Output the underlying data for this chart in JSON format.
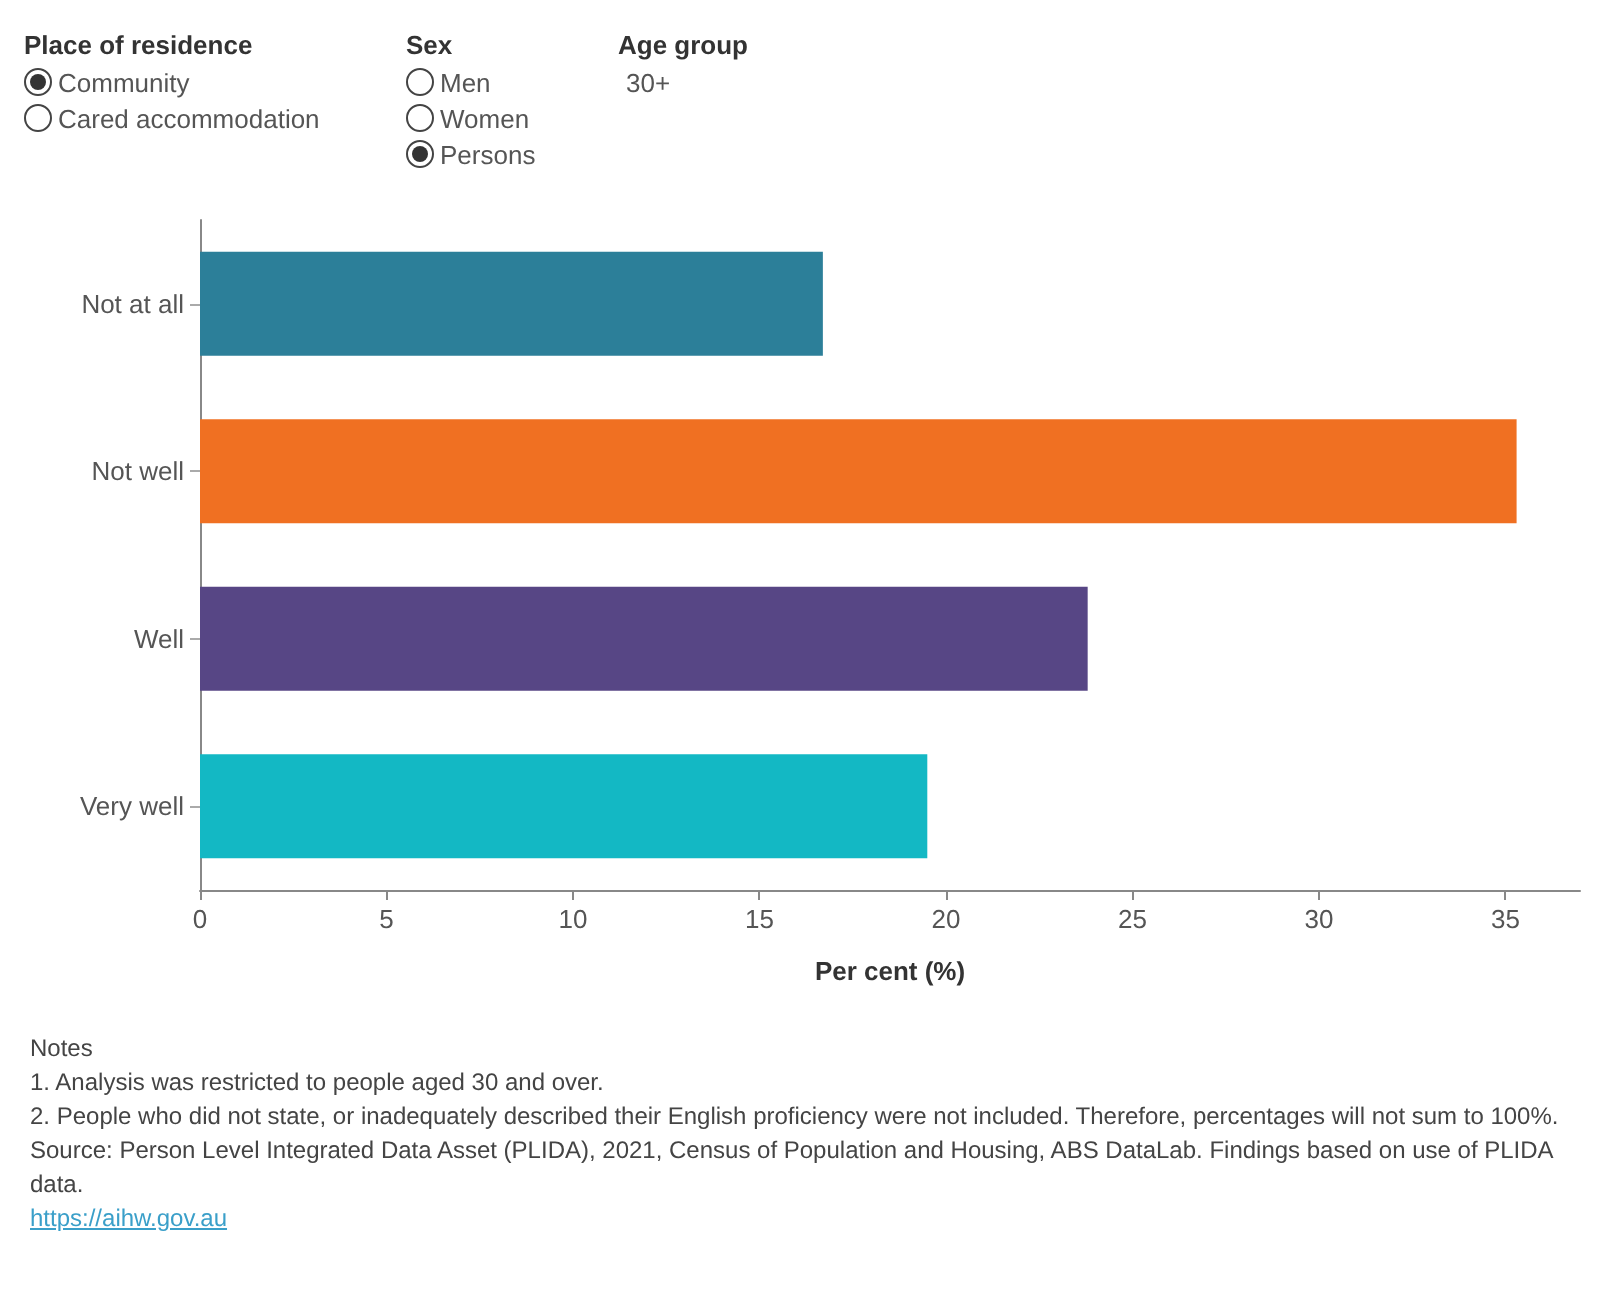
{
  "chart_data": {
    "type": "bar",
    "orientation": "horizontal",
    "xlabel": "Per cent (%)",
    "categories": [
      "Not at all",
      "Not well",
      "Well",
      "Very well"
    ],
    "values": [
      16.7,
      35.3,
      23.8,
      19.5
    ],
    "colors": [
      "#2c7f99",
      "#f07022",
      "#574685",
      "#13b8c4"
    ],
    "xlim": [
      0,
      37
    ],
    "xticks": [
      0,
      5,
      10,
      15,
      20,
      25,
      30,
      35
    ],
    "grid": false,
    "annotations": [
      "Place of residence",
      "Community",
      "Cared accommodation",
      "Sex",
      "Men",
      "Women",
      "Persons",
      "Age group",
      "30+",
      "Notes",
      "1. Analysis was restricted to people aged 30 and over.",
      "2. People who did not state, or inadequately described their English proficiency were not included. Therefore, percentages will not sum to 100%.",
      "Source: Person Level Integrated Data Asset (PLIDA), 2021, Census of Population and Housing, ABS DataLab. Findings based on use of PLIDA data.",
      "https://aihw.gov.au"
    ]
  }
}
